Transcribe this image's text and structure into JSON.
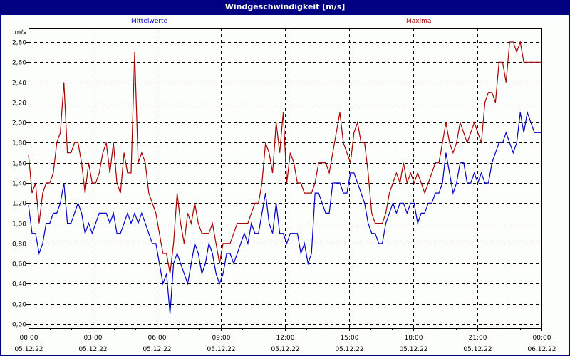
{
  "window": {
    "title": "Windgeschwindigkeit [m/s]"
  },
  "legend": {
    "mean_label": "Mittelwerte",
    "max_label": "Maxima",
    "mean_color": "#0000c8",
    "max_color": "#a80000"
  },
  "axis": {
    "y_unit": "m/s"
  },
  "chart_data": {
    "type": "line",
    "title": "Windgeschwindigkeit [m/s]",
    "xlabel": "",
    "ylabel": "m/s",
    "ylim": [
      0,
      2.8
    ],
    "y_ticks": [
      "0,00",
      "0,20",
      "0,40",
      "0,60",
      "0,80",
      "1,00",
      "1,20",
      "1,40",
      "1,60",
      "1,80",
      "2,00",
      "2,20",
      "2,40",
      "2,60",
      "2,80"
    ],
    "x_ticks": [
      {
        "time": "00:00",
        "date": "05.12.22"
      },
      {
        "time": "03:00",
        "date": "05.12.22"
      },
      {
        "time": "06:00",
        "date": "05.12.22"
      },
      {
        "time": "09:00",
        "date": "05.12.22"
      },
      {
        "time": "12:00",
        "date": "05.12.22"
      },
      {
        "time": "15:00",
        "date": "05.12.22"
      },
      {
        "time": "18:00",
        "date": "05.12.22"
      },
      {
        "time": "21:00",
        "date": "05.12.22"
      },
      {
        "time": "00:00",
        "date": "06.12.22"
      }
    ],
    "x_interval_minutes": 10,
    "grid": true,
    "legend_position": "top",
    "series": [
      {
        "name": "Mittelwerte",
        "color": "#0000c8",
        "values": [
          1.18,
          0.9,
          0.9,
          0.7,
          0.8,
          1.0,
          1.0,
          1.1,
          1.1,
          1.2,
          1.4,
          1.0,
          1.0,
          1.1,
          1.2,
          1.1,
          0.9,
          1.0,
          0.9,
          1.0,
          1.1,
          1.1,
          1.1,
          1.0,
          1.1,
          0.9,
          0.9,
          1.0,
          1.1,
          1.0,
          1.1,
          1.0,
          1.1,
          1.0,
          0.9,
          0.8,
          0.8,
          0.6,
          0.4,
          0.5,
          0.1,
          0.6,
          0.7,
          0.6,
          0.5,
          0.4,
          0.6,
          0.8,
          0.7,
          0.5,
          0.6,
          0.8,
          0.7,
          0.5,
          0.4,
          0.5,
          0.7,
          0.7,
          0.6,
          0.7,
          0.8,
          0.9,
          0.8,
          1.0,
          0.9,
          0.9,
          1.1,
          1.3,
          1.0,
          0.9,
          1.2,
          0.9,
          0.9,
          0.8,
          0.9,
          0.9,
          0.9,
          0.7,
          0.8,
          0.6,
          0.7,
          1.3,
          1.3,
          1.2,
          1.1,
          1.1,
          1.4,
          1.4,
          1.4,
          1.3,
          1.3,
          1.5,
          1.5,
          1.4,
          1.3,
          1.2,
          1.0,
          0.9,
          0.9,
          0.8,
          0.8,
          1.0,
          1.1,
          1.2,
          1.1,
          1.2,
          1.2,
          1.1,
          1.2,
          1.2,
          1.0,
          1.1,
          1.1,
          1.2,
          1.2,
          1.3,
          1.3,
          1.4,
          1.7,
          1.5,
          1.3,
          1.4,
          1.6,
          1.6,
          1.4,
          1.4,
          1.5,
          1.4,
          1.5,
          1.4,
          1.4,
          1.6,
          1.7,
          1.8,
          1.8,
          1.9,
          1.8,
          1.7,
          1.8,
          2.1,
          1.9,
          2.1,
          2.0,
          1.9,
          1.9,
          1.9
        ]
      },
      {
        "name": "Maxima",
        "color": "#a80000",
        "values": [
          1.68,
          1.3,
          1.4,
          1.0,
          1.3,
          1.4,
          1.4,
          1.5,
          1.8,
          1.9,
          2.4,
          1.7,
          1.7,
          1.8,
          1.8,
          1.6,
          1.3,
          1.6,
          1.4,
          1.4,
          1.5,
          1.7,
          1.8,
          1.5,
          1.8,
          1.4,
          1.3,
          1.7,
          1.5,
          1.5,
          2.7,
          1.6,
          1.7,
          1.6,
          1.3,
          1.2,
          1.1,
          0.9,
          0.7,
          0.7,
          0.5,
          0.8,
          1.3,
          1.0,
          0.8,
          1.1,
          1.0,
          1.2,
          1.0,
          0.9,
          0.9,
          0.9,
          1.0,
          0.8,
          0.6,
          0.8,
          0.8,
          0.8,
          0.9,
          1.0,
          1.0,
          1.0,
          1.0,
          1.1,
          1.2,
          1.2,
          1.4,
          1.8,
          1.7,
          1.5,
          2.0,
          1.7,
          2.1,
          1.4,
          1.7,
          1.6,
          1.4,
          1.4,
          1.3,
          1.3,
          1.3,
          1.4,
          1.6,
          1.6,
          1.6,
          1.5,
          1.7,
          1.9,
          2.1,
          1.8,
          1.7,
          1.6,
          1.9,
          2.0,
          1.8,
          1.8,
          1.5,
          1.1,
          1.0,
          1.0,
          1.0,
          1.1,
          1.3,
          1.4,
          1.5,
          1.4,
          1.6,
          1.4,
          1.5,
          1.4,
          1.5,
          1.4,
          1.3,
          1.4,
          1.5,
          1.6,
          1.6,
          1.8,
          2.0,
          1.8,
          1.7,
          1.8,
          2.0,
          1.9,
          1.8,
          1.9,
          2.0,
          1.9,
          1.8,
          2.2,
          2.3,
          2.3,
          2.2,
          2.6,
          2.6,
          2.4,
          2.8,
          2.8,
          2.7,
          2.8,
          2.6,
          2.6,
          2.6,
          2.6,
          2.6,
          2.6
        ]
      }
    ]
  }
}
